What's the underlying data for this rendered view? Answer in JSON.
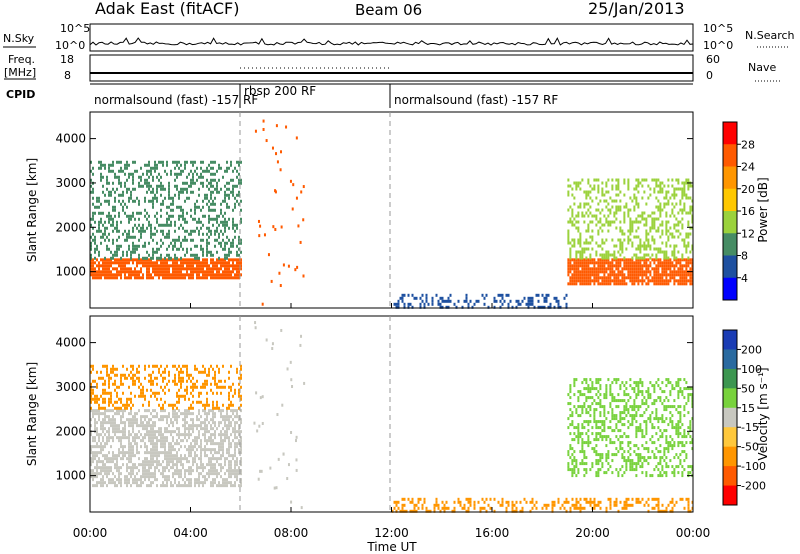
{
  "header": {
    "title_left": "Adak East (fitACF)",
    "title_center": "Beam 06",
    "title_right": "25/Jan/2013"
  },
  "noise_panel": {
    "left_label": "N.Sky",
    "right_label": "N.Search",
    "left_ticks": [
      "10^5",
      "10^0"
    ],
    "right_ticks": [
      "10^5",
      "10^0"
    ]
  },
  "freq_panel": {
    "left_label_line1": "Freq.",
    "left_label_line2": "[MHz]",
    "right_label": "Nave",
    "left_ticks": [
      "18",
      "8"
    ],
    "right_ticks": [
      "60",
      "0"
    ]
  },
  "cpid": {
    "label": "CPID",
    "segments": [
      {
        "name": "normalsound (fast) -157 RF",
        "start_hour": 0,
        "end_hour": 6
      },
      {
        "name": "rbsp 200 RF",
        "start_hour": 6,
        "end_hour": 12
      },
      {
        "name": "normalsound (fast) -157 RF",
        "start_hour": 12,
        "end_hour": 24
      }
    ]
  },
  "axes": {
    "xlabel": "Time UT",
    "x_ticks": [
      "00:00",
      "04:00",
      "08:00",
      "12:00",
      "16:00",
      "20:00",
      "00:00"
    ],
    "ylabel": "Slant Range [km]",
    "y_ticks": [
      "1000",
      "2000",
      "3000",
      "4000"
    ]
  },
  "power_colorbar": {
    "label": "Power [dB]",
    "ticks": [
      "28",
      "24",
      "20",
      "16",
      "12",
      "8",
      "4"
    ],
    "colors": [
      "#ff0000",
      "#ff5a00",
      "#ff9600",
      "#ffc800",
      "#9bd23c",
      "#468c64",
      "#1e50a0",
      "#0000ff"
    ]
  },
  "velocity_colorbar": {
    "label": "Velocity [m s⁻¹]",
    "ticks": [
      "200",
      "100",
      "50",
      "15",
      "-15",
      "-50",
      "-100",
      "-200"
    ],
    "colors": [
      "#1a3cb4",
      "#2a6aa0",
      "#3c9650",
      "#78d23c",
      "#c8c8c0",
      "#ffc83c",
      "#ff9600",
      "#ff5a00",
      "#ff0000"
    ]
  },
  "chart_data": [
    {
      "type": "heatmap",
      "title": "Power",
      "xlabel": "Time UT",
      "ylabel": "Slant Range [km]",
      "xlim": [
        0,
        24
      ],
      "ylim": [
        180,
        4600
      ],
      "colorbar": {
        "label": "Power [dB]",
        "range": [
          0,
          32
        ]
      },
      "features": [
        {
          "hours": [
            0,
            6
          ],
          "range_km": [
            850,
            1300
          ],
          "power_db": 28
        },
        {
          "hours": [
            0,
            6
          ],
          "range_km": [
            1300,
            3500
          ],
          "power_db": 14
        },
        {
          "hours": [
            12,
            19
          ],
          "range_km": [
            200,
            500
          ],
          "power_db": 10
        },
        {
          "hours": [
            19,
            24
          ],
          "range_km": [
            700,
            1300
          ],
          "power_db": 28
        },
        {
          "hours": [
            19,
            24
          ],
          "range_km": [
            1300,
            3100
          ],
          "power_db": 16
        }
      ]
    },
    {
      "type": "heatmap",
      "title": "Velocity",
      "xlabel": "Time UT",
      "ylabel": "Slant Range [km]",
      "xlim": [
        0,
        24
      ],
      "ylim": [
        180,
        4600
      ],
      "colorbar": {
        "label": "Velocity [m s⁻¹]",
        "range": [
          -250,
          250
        ]
      },
      "features": [
        {
          "hours": [
            0,
            6
          ],
          "range_km": [
            800,
            2500
          ],
          "velocity": 0
        },
        {
          "hours": [
            0,
            6
          ],
          "range_km": [
            2500,
            3500
          ],
          "velocity": -40
        },
        {
          "hours": [
            12,
            24
          ],
          "range_km": [
            200,
            500
          ],
          "velocity": -60
        },
        {
          "hours": [
            19,
            24
          ],
          "range_km": [
            1000,
            3200
          ],
          "velocity": 40
        }
      ]
    }
  ]
}
